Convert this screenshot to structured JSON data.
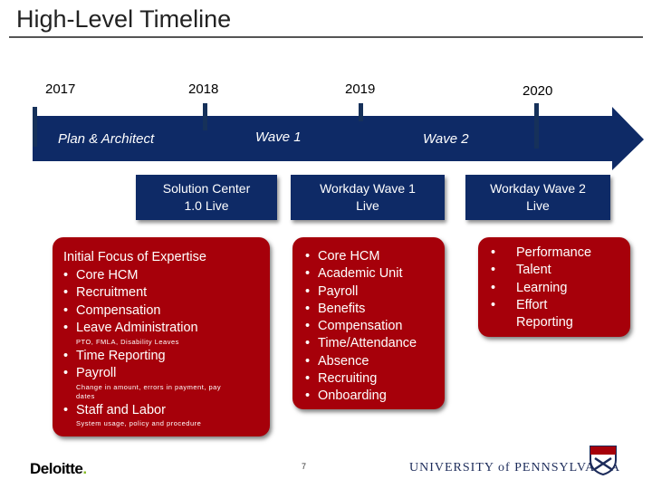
{
  "header": {
    "title": "High-Level Timeline"
  },
  "timeline": {
    "years": [
      "2017",
      "2018",
      "2019",
      "2020"
    ],
    "phases": [
      "Plan & Architect",
      "Wave 1",
      "Wave 2"
    ]
  },
  "milestones": {
    "solution_center": "Solution Center\n1.0 Live",
    "wave1_live": "Workday Wave 1\nLive",
    "wave2_live": "Workday Wave 2\nLive"
  },
  "focus": {
    "heading": "Initial Focus of Expertise",
    "items_a": [
      "Core HCM",
      "Recruitment",
      "Compensation",
      "Leave Administration"
    ],
    "note_a": "PTO, FMLA, Disability Leaves",
    "items_b": [
      "Time Reporting",
      "Payroll"
    ],
    "note_b": "Change in amount, errors in payment, pay dates",
    "items_c": [
      "Staff and Labor"
    ],
    "note_c": "System usage, policy and procedure"
  },
  "wave1_items": [
    "Core HCM",
    "Academic Unit",
    "Payroll",
    "Benefits",
    "Compensation",
    "Time/Attendance",
    "Absence",
    "Recruiting",
    "Onboarding"
  ],
  "wave2_items": [
    "Performance",
    "Talent",
    "Learning",
    "Effort Reporting"
  ],
  "footer": {
    "deloitte": "Deloitte",
    "deloitte_dot": ".",
    "page": "7",
    "penn": "UNIVERSITY of PENNSYLVANIA"
  },
  "colors": {
    "navy": "#0e2a66",
    "red": "#a6000a",
    "deloitte_green": "#86bc25"
  }
}
